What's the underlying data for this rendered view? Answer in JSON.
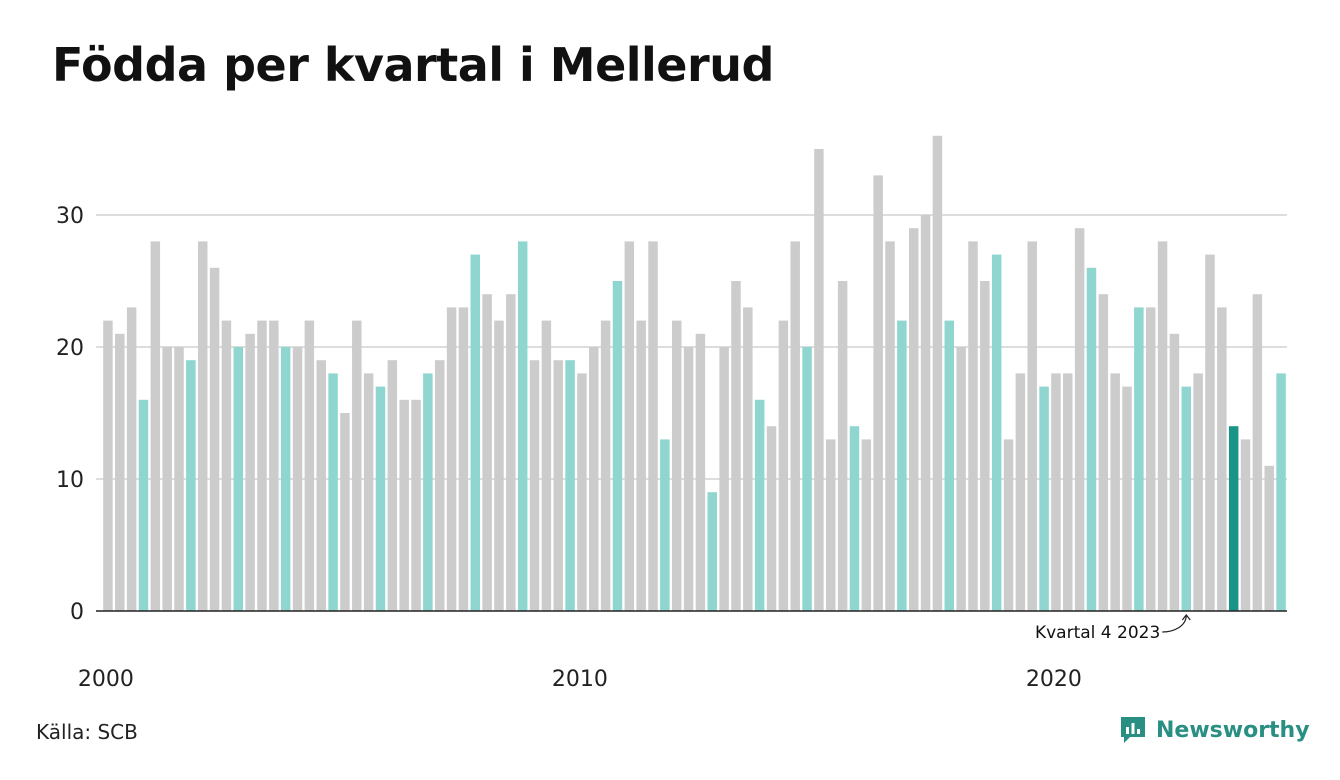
{
  "title": "Födda per kvartal i Mellerud",
  "source": "Källa: SCB",
  "brand": "Newsworthy",
  "colors": {
    "bar": "#cccccc",
    "q4": "#8ed6cf",
    "highlight": "#1a9486",
    "grid": "#dddddd",
    "baseline": "#222222",
    "brand": "#2a8f83"
  },
  "chart_data": {
    "type": "bar",
    "ylim": [
      0,
      36
    ],
    "yticks": [
      0,
      10,
      20,
      30
    ],
    "xtick_labels": [
      {
        "label": "2000",
        "index": 0
      },
      {
        "label": "2010",
        "index": 40
      },
      {
        "label": "2020",
        "index": 80
      }
    ],
    "grid": true,
    "start_year": 2000,
    "values": [
      22,
      21,
      23,
      16,
      28,
      20,
      20,
      19,
      28,
      26,
      22,
      20,
      21,
      22,
      22,
      20,
      20,
      22,
      19,
      18,
      15,
      22,
      18,
      17,
      19,
      16,
      16,
      18,
      19,
      23,
      23,
      27,
      24,
      22,
      24,
      28,
      19,
      22,
      19,
      19,
      18,
      20,
      22,
      25,
      28,
      22,
      28,
      13,
      22,
      20,
      21,
      9,
      20,
      25,
      23,
      16,
      14,
      22,
      28,
      20,
      35,
      13,
      25,
      14,
      13,
      33,
      28,
      22,
      29,
      30,
      36,
      22,
      20,
      28,
      25,
      27,
      13,
      18,
      28,
      17,
      18,
      18,
      29,
      26,
      24,
      18,
      17,
      23,
      23,
      28,
      21,
      17,
      18,
      27,
      23,
      14,
      13,
      24,
      11,
      18
    ],
    "highlight_index": 95,
    "annotation": "Kvartal 4 2023"
  }
}
